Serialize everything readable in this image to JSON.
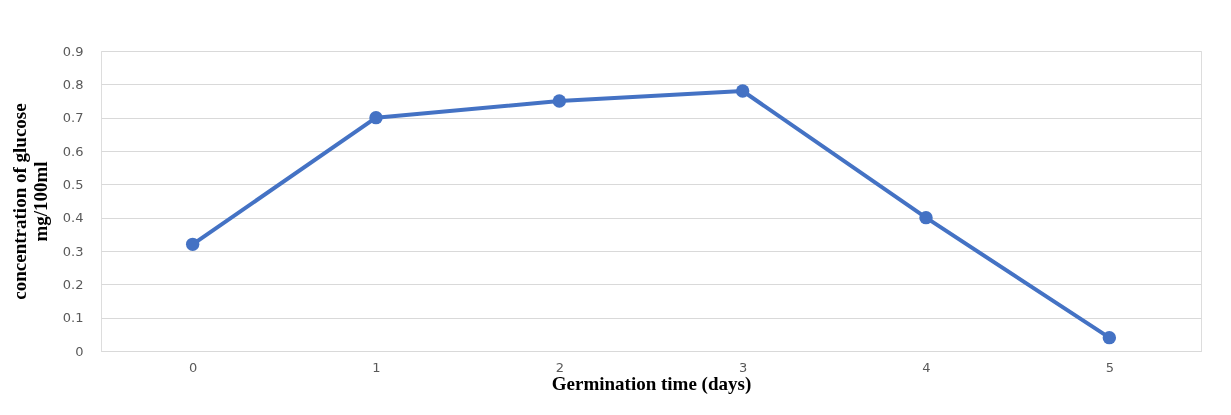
{
  "chart_data": {
    "type": "line",
    "xlabel": "Germination time (days)",
    "ylabel": "concentration of glucose\nmg/100ml",
    "categories": [
      "0",
      "1",
      "2",
      "3",
      "4",
      "5"
    ],
    "series": [
      {
        "color": "#4472c4",
        "values": [
          0.32,
          0.7,
          0.75,
          0.78,
          0.4,
          0.04
        ]
      }
    ],
    "ylim": [
      0,
      0.9
    ],
    "yticks": [
      0,
      0.1,
      0.2,
      0.3,
      0.4,
      0.5,
      0.6,
      0.7,
      0.8,
      0.9
    ],
    "grid": "y",
    "legend": false,
    "marker": "circle",
    "line_style": "solid"
  }
}
